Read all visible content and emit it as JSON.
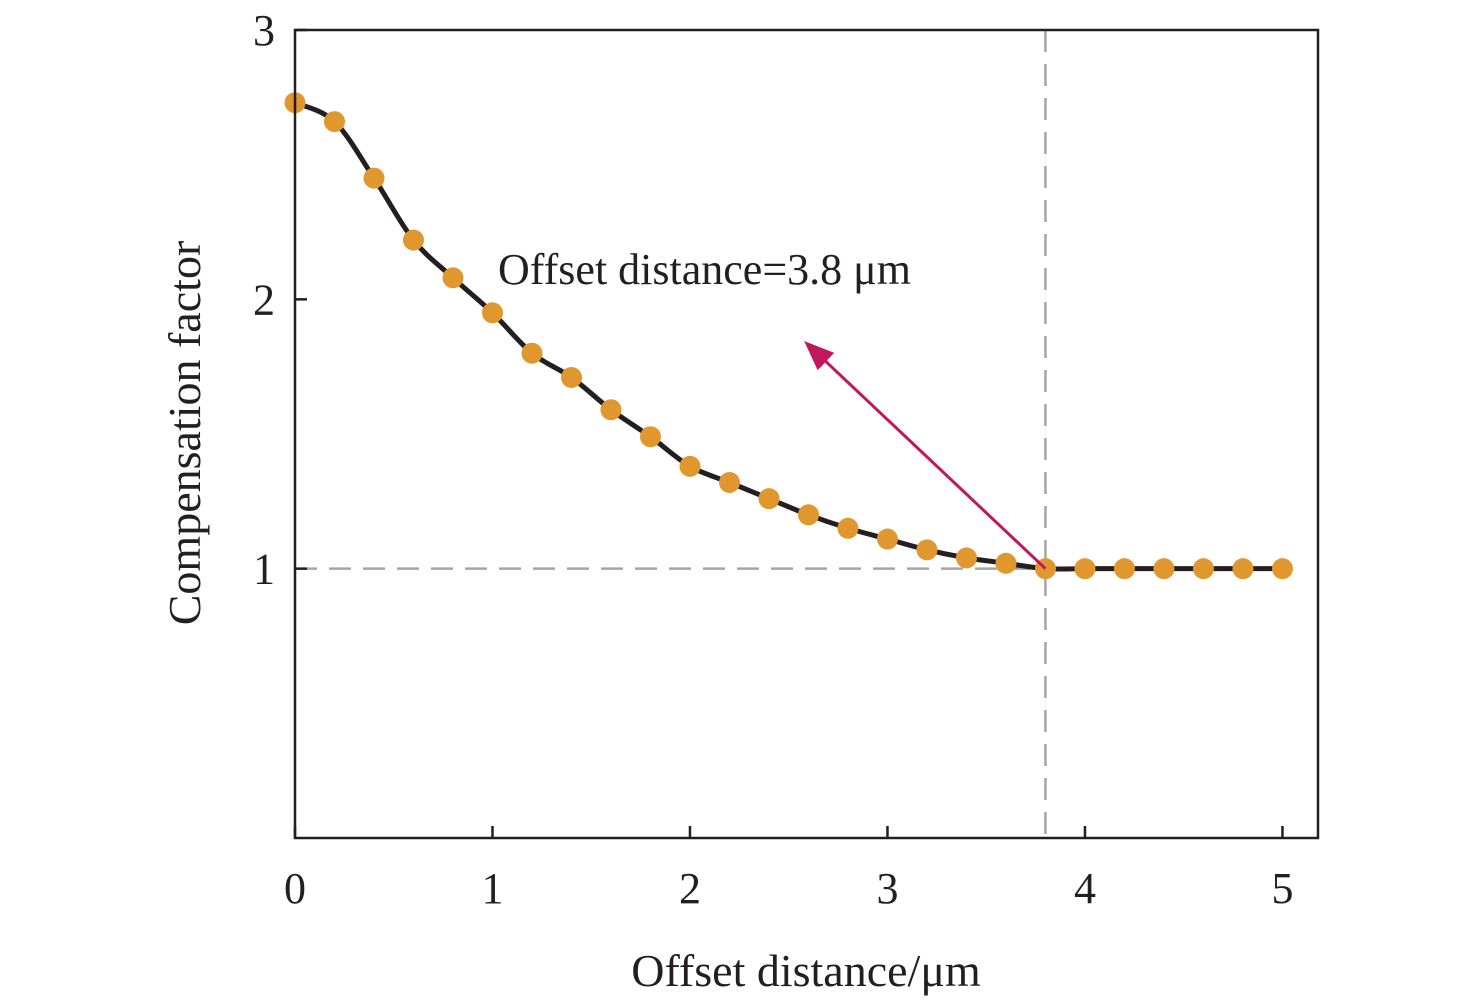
{
  "chart_data": {
    "type": "line",
    "title": "",
    "xlabel": "Offset distance/μm",
    "ylabel": "Compensation factor",
    "xlim": [
      0,
      5.18
    ],
    "ylim": [
      0,
      3
    ],
    "xticks": [
      0,
      1,
      2,
      3,
      4,
      5
    ],
    "yticks": [
      1,
      2,
      3
    ],
    "grid": false,
    "series": [
      {
        "x": [
          0,
          0.2,
          0.4,
          0.6,
          0.8,
          1.0,
          1.2,
          1.4,
          1.6,
          1.8,
          2.0,
          2.2,
          2.4,
          2.6,
          2.8,
          3.0,
          3.2,
          3.4,
          3.6,
          3.8,
          4.0,
          4.2,
          4.4,
          4.6,
          4.8,
          5.0
        ],
        "y": [
          2.73,
          2.66,
          2.45,
          2.22,
          2.08,
          1.95,
          1.8,
          1.71,
          1.59,
          1.49,
          1.38,
          1.32,
          1.26,
          1.2,
          1.15,
          1.11,
          1.07,
          1.04,
          1.02,
          1.0,
          1.0,
          1.0,
          1.0,
          1.0,
          1.0,
          1.0
        ]
      }
    ],
    "reference_lines": {
      "horizontal_y": 1.0,
      "vertical_x": 3.8
    },
    "annotation": {
      "text": "Offset distance=3.8 μm",
      "arrow_from": [
        3.8,
        1.0
      ],
      "arrow_to": [
        2.6,
        1.83
      ]
    },
    "colors": {
      "line": "#231f20",
      "marker": "#e0972e",
      "reference": "#a6a6a6",
      "arrow": "#c2185b",
      "axis": "#231f20"
    }
  }
}
